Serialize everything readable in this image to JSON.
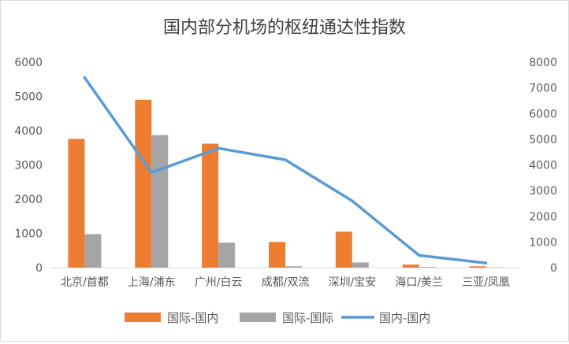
{
  "chart_data": {
    "type": "bar",
    "title": "国内部分机场的枢纽通达性指数",
    "xlabel": "",
    "ylabel": "",
    "y2label": "",
    "categories": [
      "北京/首都",
      "上海/浦东",
      "广州/白云",
      "成都/双流",
      "深圳/宝安",
      "海口/美兰",
      "三亚/凤凰"
    ],
    "series": [
      {
        "name": "国际-国内",
        "type": "bar",
        "axis": "left",
        "color": "#ed7d31",
        "values": [
          3760,
          4900,
          3620,
          750,
          1050,
          90,
          40
        ]
      },
      {
        "name": "国际-国际",
        "type": "bar",
        "axis": "left",
        "color": "#a5a5a5",
        "values": [
          980,
          3870,
          730,
          40,
          150,
          20,
          10
        ]
      },
      {
        "name": "国内-国内",
        "type": "line",
        "axis": "right",
        "color": "#5b9bd5",
        "values": [
          7400,
          3700,
          4650,
          4200,
          2600,
          480,
          180
        ]
      }
    ],
    "ylim": [
      0,
      6000
    ],
    "y2lim": [
      0,
      8000
    ],
    "yticks": [
      "0",
      "1000",
      "2000",
      "3000",
      "4000",
      "5000",
      "6000"
    ],
    "y2ticks": [
      "0",
      "1000",
      "2000",
      "3000",
      "4000",
      "5000",
      "6000",
      "7000",
      "8000"
    ],
    "grid": false,
    "legend_position": "bottom"
  }
}
